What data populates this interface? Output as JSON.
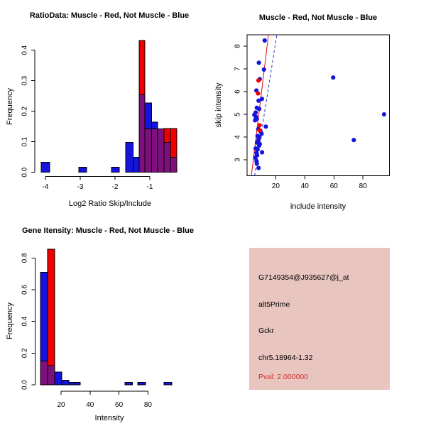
{
  "colors": {
    "muscle_red": "#F00000",
    "not_muscle_blue": "#1414DC",
    "overlap_purple": "#7D107D",
    "axis_black": "#000000",
    "fit_line_red": "#F00000",
    "fit_line_blue": "#3030C8"
  },
  "chart_data": [
    {
      "type": "bar",
      "id": "ratio_hist",
      "title": "RatioData: Muscle - Red, Not Muscle - Blue",
      "xlabel": "Log2 Ratio Skip/Include",
      "ylabel": "Frequency",
      "xticks": [
        -4,
        -3,
        -2,
        -1
      ],
      "yticks": [
        "0.0",
        "0.1",
        "0.2",
        "0.3",
        "0.4"
      ],
      "xlim": [
        -4.3,
        0.0
      ],
      "ylim": [
        0,
        0.437
      ],
      "grid": false,
      "bars": [
        {
          "x0": -4.12,
          "x1": -3.88,
          "total": 0.033,
          "overlap": 0,
          "series": "blue"
        },
        {
          "x0": -3.04,
          "x1": -2.82,
          "total": 0.017,
          "overlap": 0,
          "series": "blue"
        },
        {
          "x0": -2.1,
          "x1": -1.88,
          "total": 0.017,
          "overlap": 0,
          "series": "blue"
        },
        {
          "x0": -1.69,
          "x1": -1.48,
          "total": 0.098,
          "overlap": 0,
          "series": "blue"
        },
        {
          "x0": -1.48,
          "x1": -1.31,
          "total": 0.049,
          "overlap": 0,
          "series": "blue"
        },
        {
          "x0": -1.31,
          "x1": -1.14,
          "total": 0.432,
          "overlap": 0.254,
          "series": "red"
        },
        {
          "x0": -1.14,
          "x1": -0.95,
          "total": 0.227,
          "overlap": 0.142,
          "series": "blue"
        },
        {
          "x0": -0.95,
          "x1": -0.78,
          "total": 0.165,
          "overlap": 0.142,
          "series": "blue"
        },
        {
          "x0": -0.78,
          "x1": -0.59,
          "total": 0.142,
          "overlap": 0.142,
          "series": "red"
        },
        {
          "x0": -0.59,
          "x1": -0.41,
          "total": 0.144,
          "overlap": 0.098,
          "series": "red"
        },
        {
          "x0": -0.41,
          "x1": -0.22,
          "total": 0.144,
          "overlap": 0.049,
          "series": "red"
        }
      ]
    },
    {
      "type": "scatter",
      "id": "intensity_scatter",
      "title": "Muscle - Red, Not Muscle - Blue",
      "xlabel": "include intensity",
      "ylabel": "skip intensity",
      "xticks": [
        20,
        40,
        60,
        80
      ],
      "yticks": [
        3,
        4,
        5,
        6,
        7,
        8
      ],
      "xlim": [
        0.3,
        98.2
      ],
      "ylim": [
        2.3,
        8.5
      ],
      "grid": false,
      "blue_points": [
        [
          12.4,
          8.25
        ],
        [
          8.4,
          7.27
        ],
        [
          11.9,
          6.97
        ],
        [
          9.0,
          6.55
        ],
        [
          6.7,
          6.05
        ],
        [
          10.5,
          5.68
        ],
        [
          8.2,
          5.6
        ],
        [
          7.0,
          5.29
        ],
        [
          8.6,
          5.24
        ],
        [
          6.2,
          5.08
        ],
        [
          5.3,
          4.98
        ],
        [
          6.3,
          4.9
        ],
        [
          7.0,
          4.8
        ],
        [
          5.8,
          4.74
        ],
        [
          13.2,
          4.46
        ],
        [
          8.0,
          4.35
        ],
        [
          9.5,
          4.25
        ],
        [
          10.3,
          4.15
        ],
        [
          7.5,
          4.05
        ],
        [
          8.8,
          4.0
        ],
        [
          8.2,
          3.9
        ],
        [
          7.8,
          3.8
        ],
        [
          7.1,
          3.76
        ],
        [
          9.0,
          3.7
        ],
        [
          8.6,
          3.62
        ],
        [
          6.2,
          3.5
        ],
        [
          7.5,
          3.45
        ],
        [
          10.6,
          3.33
        ],
        [
          6.8,
          3.3
        ],
        [
          7.2,
          3.2
        ],
        [
          5.9,
          3.1
        ],
        [
          6.8,
          2.95
        ],
        [
          7.0,
          2.83
        ],
        [
          8.2,
          2.64
        ],
        [
          59.5,
          6.62
        ],
        [
          94.5,
          5.0
        ],
        [
          73.7,
          3.87
        ]
      ],
      "red_points": [
        [
          8.1,
          6.49
        ],
        [
          7.8,
          5.92
        ],
        [
          8.9,
          4.52
        ],
        [
          9.0,
          4.3
        ]
      ],
      "red_line": [
        [
          3.25,
          2.3
        ],
        [
          15.0,
          8.5
        ]
      ],
      "blue_line": [
        [
          5.45,
          2.3
        ],
        [
          20.75,
          8.5
        ]
      ]
    },
    {
      "type": "bar",
      "id": "gene_hist",
      "title": "Gene Itensity: Muscle - Red, Not Muscle - Blue",
      "xlabel": "Intensity",
      "ylabel": "Frequency",
      "xticks": [
        20,
        40,
        60,
        80
      ],
      "yticks": [
        "0.0",
        "0.2",
        "0.4",
        "0.6",
        "0.8"
      ],
      "xlim": [
        2.3,
        105.0
      ],
      "ylim": [
        0,
        0.9
      ],
      "grid": false,
      "bars": [
        {
          "x0": 5.8,
          "x1": 10.7,
          "total": 0.71,
          "overlap": 0.15,
          "series": "blue"
        },
        {
          "x0": 10.7,
          "x1": 15.6,
          "total": 0.855,
          "overlap": 0.12,
          "series": "red"
        },
        {
          "x0": 15.6,
          "x1": 20.5,
          "total": 0.08,
          "overlap": 0,
          "series": "blue"
        },
        {
          "x0": 20.5,
          "x1": 25.4,
          "total": 0.03,
          "overlap": 0,
          "series": "blue"
        },
        {
          "x0": 25.4,
          "x1": 29.3,
          "total": 0.016,
          "overlap": 0,
          "series": "blue"
        },
        {
          "x0": 29.3,
          "x1": 33.2,
          "total": 0.016,
          "overlap": 0,
          "series": "blue"
        },
        {
          "x0": 64.1,
          "x1": 69.3,
          "total": 0.016,
          "overlap": 0,
          "series": "blue"
        },
        {
          "x0": 72.9,
          "x1": 78.3,
          "total": 0.016,
          "overlap": 0,
          "series": "blue"
        },
        {
          "x0": 91.1,
          "x1": 96.5,
          "total": 0.016,
          "overlap": 0,
          "series": "blue"
        }
      ]
    }
  ],
  "info_panel": {
    "bg_color": "#E8C5BE",
    "lines": [
      {
        "text": "G7149354@J935627@j_at",
        "color": "#000000"
      },
      {
        "text": "alt5Prime",
        "color": "#000000"
      },
      {
        "text": "Gckr",
        "color": "#000000"
      },
      {
        "text": "chr5.18964-1.32",
        "color": "#000000"
      },
      {
        "text": "Pval: 2.000000",
        "color": "#CC3333"
      }
    ]
  }
}
